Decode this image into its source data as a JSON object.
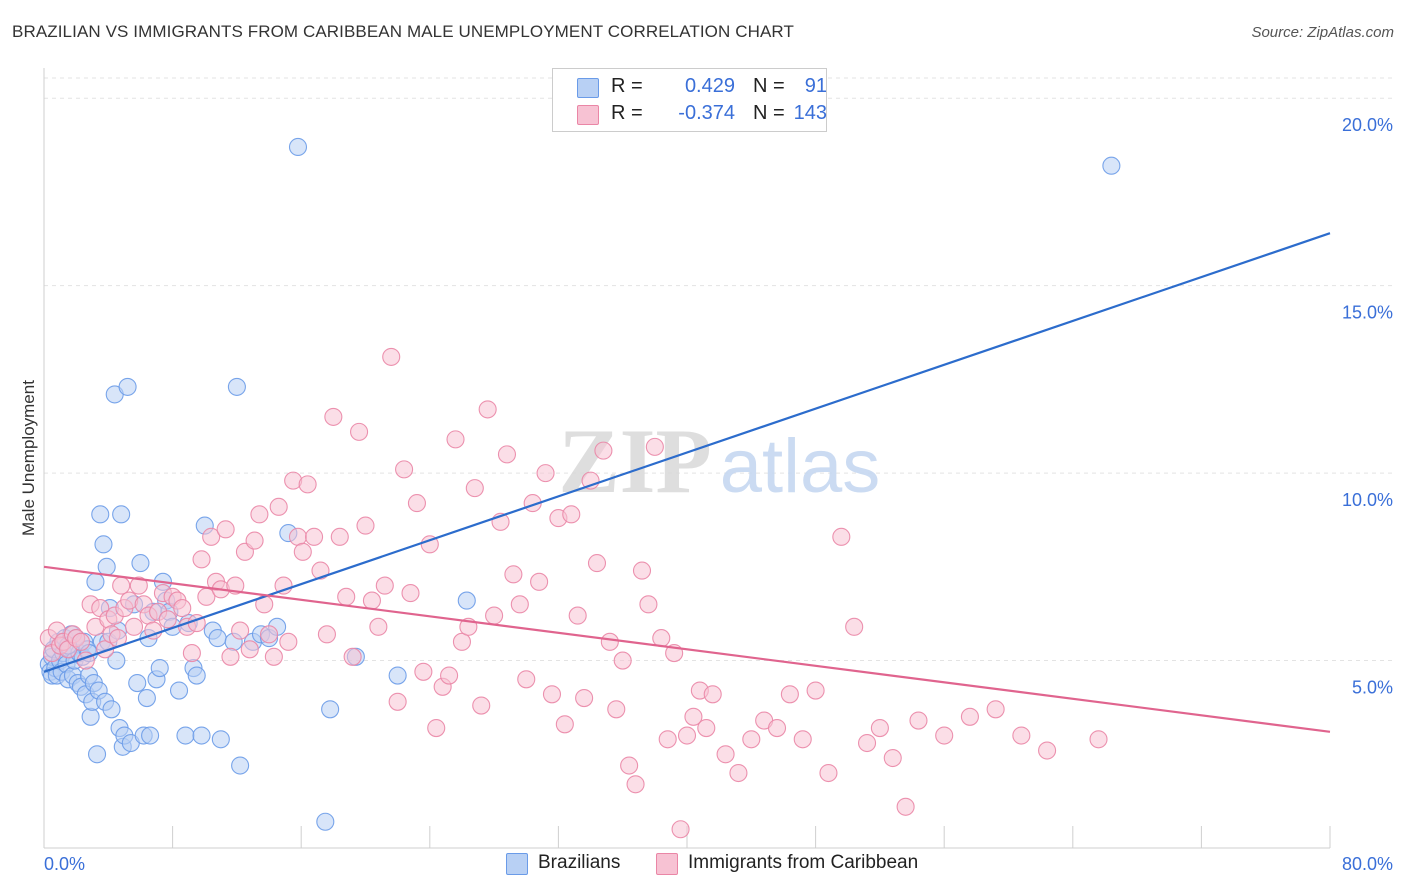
{
  "chart_data": {
    "type": "scatter",
    "title": "BRAZILIAN VS IMMIGRANTS FROM CARIBBEAN MALE UNEMPLOYMENT CORRELATION CHART",
    "source": "Source: ZipAtlas.com",
    "watermark": {
      "zip": "ZIP",
      "atlas": "atlas"
    },
    "xlabel": "",
    "ylabel": "Male Unemployment",
    "xlim": [
      0,
      80
    ],
    "ylim": [
      0,
      20.7
    ],
    "x_tick_labels": {
      "min": "0.0%",
      "max": "80.0%"
    },
    "y_ticks": [
      5,
      10,
      15,
      20
    ],
    "y_tick_labels": [
      "5.0%",
      "10.0%",
      "15.0%",
      "20.0%"
    ],
    "grid": true,
    "legend_position": "top-center",
    "stats": [
      {
        "r_label": "R =",
        "r_value": "0.429",
        "n_label": "N =",
        "n_value": "91"
      },
      {
        "r_label": "R =",
        "r_value": "-0.374",
        "n_label": "N =",
        "n_value": "143"
      }
    ],
    "series": [
      {
        "name": "Brazilians",
        "color": "#6a9be8",
        "fill": "#b8d0f4",
        "line_color": "#2c6ccc",
        "trend": {
          "x": [
            0,
            80
          ],
          "y": [
            4.7,
            16.4
          ]
        },
        "points": [
          [
            0.3,
            4.9
          ],
          [
            0.4,
            4.7
          ],
          [
            0.5,
            5.1
          ],
          [
            0.5,
            4.6
          ],
          [
            0.6,
            5.3
          ],
          [
            0.7,
            4.8
          ],
          [
            0.8,
            4.6
          ],
          [
            0.9,
            5.5
          ],
          [
            1.0,
            5.0
          ],
          [
            1.1,
            4.7
          ],
          [
            1.2,
            5.2
          ],
          [
            1.3,
            5.6
          ],
          [
            1.4,
            4.9
          ],
          [
            1.5,
            4.5
          ],
          [
            1.6,
            5.3
          ],
          [
            1.7,
            5.7
          ],
          [
            1.8,
            4.6
          ],
          [
            1.9,
            5.0
          ],
          [
            2.0,
            5.6
          ],
          [
            2.1,
            4.4
          ],
          [
            2.2,
            5.2
          ],
          [
            2.3,
            4.3
          ],
          [
            2.4,
            5.1
          ],
          [
            2.5,
            5.5
          ],
          [
            2.6,
            4.1
          ],
          [
            2.7,
            5.3
          ],
          [
            2.8,
            4.6
          ],
          [
            2.9,
            3.5
          ],
          [
            3.0,
            3.9
          ],
          [
            3.1,
            4.4
          ],
          [
            3.2,
            7.1
          ],
          [
            3.3,
            2.5
          ],
          [
            3.4,
            4.2
          ],
          [
            3.5,
            8.9
          ],
          [
            3.6,
            5.5
          ],
          [
            3.7,
            8.1
          ],
          [
            3.8,
            3.9
          ],
          [
            3.9,
            7.5
          ],
          [
            4.0,
            5.5
          ],
          [
            4.1,
            6.4
          ],
          [
            4.2,
            3.7
          ],
          [
            4.4,
            12.1
          ],
          [
            4.5,
            5.0
          ],
          [
            4.6,
            5.8
          ],
          [
            4.7,
            3.2
          ],
          [
            4.8,
            8.9
          ],
          [
            4.9,
            2.7
          ],
          [
            5.0,
            3.0
          ],
          [
            5.2,
            12.3
          ],
          [
            5.4,
            2.8
          ],
          [
            5.6,
            6.5
          ],
          [
            5.8,
            4.4
          ],
          [
            6.0,
            7.6
          ],
          [
            6.2,
            3.0
          ],
          [
            6.4,
            4.0
          ],
          [
            6.6,
            3.0
          ],
          [
            6.8,
            6.3
          ],
          [
            7.0,
            4.5
          ],
          [
            7.2,
            4.8
          ],
          [
            7.4,
            7.1
          ],
          [
            7.6,
            6.6
          ],
          [
            7.8,
            6.3
          ],
          [
            8.0,
            5.9
          ],
          [
            8.4,
            4.2
          ],
          [
            8.8,
            3.0
          ],
          [
            9.0,
            6.0
          ],
          [
            9.3,
            4.8
          ],
          [
            9.5,
            4.6
          ],
          [
            9.8,
            3.0
          ],
          [
            10.0,
            8.6
          ],
          [
            10.5,
            5.8
          ],
          [
            10.8,
            5.6
          ],
          [
            11.0,
            2.9
          ],
          [
            11.8,
            5.5
          ],
          [
            12.0,
            12.3
          ],
          [
            12.2,
            2.2
          ],
          [
            13.0,
            5.5
          ],
          [
            13.5,
            5.7
          ],
          [
            14.0,
            5.6
          ],
          [
            14.5,
            5.9
          ],
          [
            15.2,
            8.4
          ],
          [
            15.8,
            18.7
          ],
          [
            17.5,
            0.7
          ],
          [
            17.8,
            3.7
          ],
          [
            19.4,
            5.1
          ],
          [
            22.0,
            4.6
          ],
          [
            26.3,
            6.6
          ],
          [
            66.4,
            18.2
          ],
          [
            1.5,
            5.4
          ],
          [
            2.8,
            5.2
          ],
          [
            6.5,
            5.6
          ]
        ]
      },
      {
        "name": "Immigrants from Caribbean",
        "color": "#ea86a6",
        "fill": "#f7c2d3",
        "line_color": "#e0648e",
        "trend": {
          "x": [
            0,
            80
          ],
          "y": [
            7.5,
            3.1
          ]
        },
        "points": [
          [
            0.3,
            5.6
          ],
          [
            0.5,
            5.2
          ],
          [
            0.8,
            5.8
          ],
          [
            1.0,
            5.4
          ],
          [
            1.2,
            5.5
          ],
          [
            1.5,
            5.3
          ],
          [
            1.8,
            5.7
          ],
          [
            2.0,
            5.6
          ],
          [
            2.3,
            5.5
          ],
          [
            2.6,
            5.0
          ],
          [
            2.9,
            6.5
          ],
          [
            3.2,
            5.9
          ],
          [
            3.5,
            6.4
          ],
          [
            3.8,
            5.3
          ],
          [
            4.0,
            6.1
          ],
          [
            4.2,
            5.7
          ],
          [
            4.4,
            6.2
          ],
          [
            4.6,
            5.6
          ],
          [
            4.8,
            7.0
          ],
          [
            5.0,
            6.4
          ],
          [
            5.3,
            6.6
          ],
          [
            5.6,
            5.9
          ],
          [
            5.9,
            7.0
          ],
          [
            6.2,
            6.5
          ],
          [
            6.5,
            6.2
          ],
          [
            6.8,
            5.8
          ],
          [
            7.1,
            6.3
          ],
          [
            7.4,
            6.8
          ],
          [
            7.7,
            6.1
          ],
          [
            8.0,
            6.7
          ],
          [
            8.3,
            6.6
          ],
          [
            8.6,
            6.4
          ],
          [
            8.9,
            5.9
          ],
          [
            9.2,
            5.2
          ],
          [
            9.5,
            6.0
          ],
          [
            9.8,
            7.7
          ],
          [
            10.1,
            6.7
          ],
          [
            10.4,
            8.3
          ],
          [
            10.7,
            7.1
          ],
          [
            11.0,
            6.9
          ],
          [
            11.3,
            8.5
          ],
          [
            11.6,
            5.1
          ],
          [
            11.9,
            7.0
          ],
          [
            12.2,
            5.8
          ],
          [
            12.5,
            7.9
          ],
          [
            12.8,
            5.3
          ],
          [
            13.1,
            8.2
          ],
          [
            13.4,
            8.9
          ],
          [
            13.7,
            6.5
          ],
          [
            14.0,
            5.7
          ],
          [
            14.3,
            5.1
          ],
          [
            14.6,
            9.1
          ],
          [
            14.9,
            7.0
          ],
          [
            15.2,
            5.5
          ],
          [
            15.5,
            9.8
          ],
          [
            15.8,
            8.3
          ],
          [
            16.1,
            7.9
          ],
          [
            16.4,
            9.7
          ],
          [
            16.8,
            8.3
          ],
          [
            17.2,
            7.4
          ],
          [
            17.6,
            5.7
          ],
          [
            18.0,
            11.5
          ],
          [
            18.4,
            8.3
          ],
          [
            18.8,
            6.7
          ],
          [
            19.2,
            5.1
          ],
          [
            19.6,
            11.1
          ],
          [
            20.0,
            8.6
          ],
          [
            20.4,
            6.6
          ],
          [
            20.8,
            5.9
          ],
          [
            21.2,
            7.0
          ],
          [
            21.6,
            13.1
          ],
          [
            22.0,
            3.9
          ],
          [
            22.4,
            10.1
          ],
          [
            22.8,
            6.8
          ],
          [
            23.2,
            9.2
          ],
          [
            23.6,
            4.7
          ],
          [
            24.0,
            8.1
          ],
          [
            24.4,
            3.2
          ],
          [
            24.8,
            4.3
          ],
          [
            25.2,
            4.6
          ],
          [
            25.6,
            10.9
          ],
          [
            26.0,
            5.5
          ],
          [
            26.4,
            5.9
          ],
          [
            26.8,
            9.6
          ],
          [
            27.2,
            3.8
          ],
          [
            27.6,
            11.7
          ],
          [
            28.0,
            6.2
          ],
          [
            28.4,
            8.7
          ],
          [
            28.8,
            10.5
          ],
          [
            29.2,
            7.3
          ],
          [
            29.6,
            6.5
          ],
          [
            30.0,
            4.5
          ],
          [
            30.4,
            9.2
          ],
          [
            30.8,
            7.1
          ],
          [
            31.2,
            10.0
          ],
          [
            31.6,
            4.1
          ],
          [
            32.0,
            8.8
          ],
          [
            32.4,
            3.3
          ],
          [
            32.8,
            8.9
          ],
          [
            33.2,
            6.2
          ],
          [
            33.6,
            4.0
          ],
          [
            34.0,
            9.8
          ],
          [
            34.4,
            7.6
          ],
          [
            34.8,
            10.6
          ],
          [
            35.2,
            5.5
          ],
          [
            35.6,
            3.7
          ],
          [
            36.0,
            5.0
          ],
          [
            36.4,
            2.2
          ],
          [
            36.8,
            1.7
          ],
          [
            37.2,
            7.4
          ],
          [
            37.6,
            6.5
          ],
          [
            38.0,
            10.7
          ],
          [
            38.4,
            5.6
          ],
          [
            38.8,
            2.9
          ],
          [
            39.2,
            5.2
          ],
          [
            39.6,
            0.5
          ],
          [
            40.0,
            3.0
          ],
          [
            40.4,
            3.5
          ],
          [
            40.8,
            4.2
          ],
          [
            41.2,
            3.2
          ],
          [
            41.6,
            4.1
          ],
          [
            42.4,
            2.5
          ],
          [
            43.2,
            2.0
          ],
          [
            44.0,
            2.9
          ],
          [
            44.8,
            3.4
          ],
          [
            45.6,
            3.2
          ],
          [
            46.4,
            4.1
          ],
          [
            47.2,
            2.9
          ],
          [
            48.0,
            4.2
          ],
          [
            48.8,
            2.0
          ],
          [
            49.6,
            8.3
          ],
          [
            50.4,
            5.9
          ],
          [
            51.2,
            2.8
          ],
          [
            52.0,
            3.2
          ],
          [
            52.8,
            2.4
          ],
          [
            53.6,
            1.1
          ],
          [
            54.4,
            3.4
          ],
          [
            56.0,
            3.0
          ],
          [
            57.6,
            3.5
          ],
          [
            59.2,
            3.7
          ],
          [
            60.8,
            3.0
          ],
          [
            62.4,
            2.6
          ],
          [
            65.6,
            2.9
          ]
        ]
      }
    ]
  }
}
